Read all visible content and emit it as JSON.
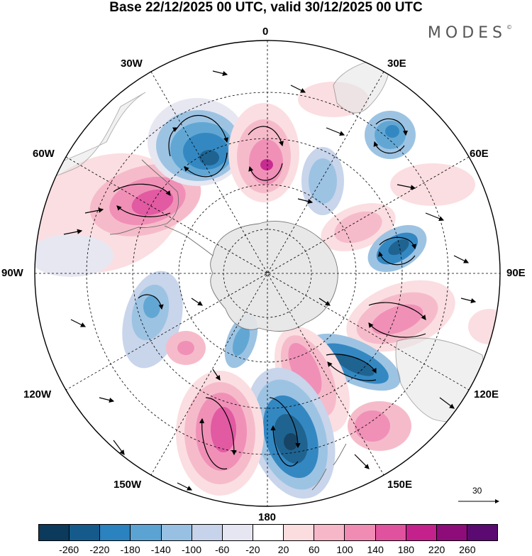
{
  "title": "Base 22/12/2025 00 UTC, valid 30/12/2025 00 UTC",
  "brand": "MODES",
  "brand_mark": "©",
  "longitude_labels": {
    "n0": "0",
    "n30e": "30E",
    "n60e": "60E",
    "n90e": "90E",
    "n120e": "120E",
    "n150e": "150E",
    "n180": "180",
    "n150w": "150W",
    "n120w": "120W",
    "n90w": "90W",
    "n60w": "60W",
    "n30w": "30W"
  },
  "reference_vector": {
    "label": "30"
  },
  "colorbar": {
    "colors": [
      "#0b3a5c",
      "#145b8c",
      "#2a82bf",
      "#5aa3d2",
      "#98c0e2",
      "#c6d3ea",
      "#e6e6f2",
      "#ffffff",
      "#fbdde0",
      "#f6b8c8",
      "#f08bb4",
      "#e0529d",
      "#c4218c",
      "#8e0b7a",
      "#5a0a70"
    ],
    "labels": [
      "-260",
      "-220",
      "-180",
      "-140",
      "-100",
      "-60",
      "-20",
      "20",
      "60",
      "100",
      "140",
      "180",
      "220",
      "260"
    ]
  },
  "colors": {
    "land": "#e6e6e6",
    "coast": "#6b6b6b",
    "graticule": "#000000"
  }
}
